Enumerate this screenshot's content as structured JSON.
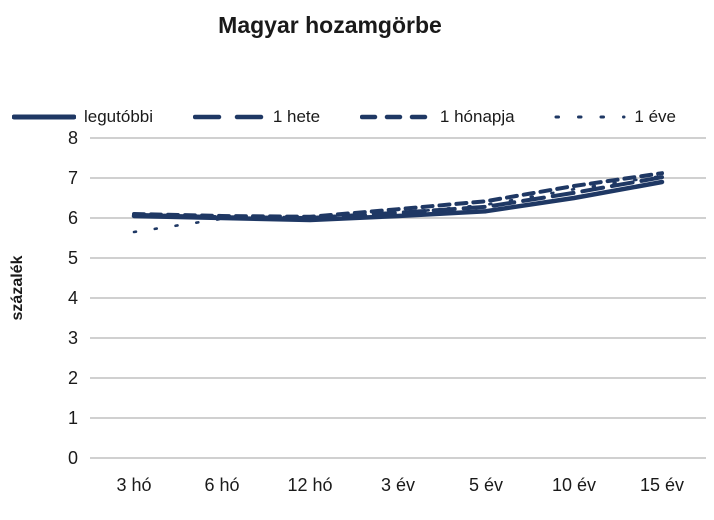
{
  "chart_data": {
    "type": "line",
    "title": "Magyar hozamgörbe",
    "ylabel": "százalék",
    "xlabel": "",
    "categories": [
      "3 hó",
      "6 hó",
      "12 hó",
      "3 év",
      "5 év",
      "10 év",
      "15 év"
    ],
    "series": [
      {
        "name": "legutóbbi",
        "style": "solid",
        "values": [
          6.05,
          6.0,
          5.95,
          6.05,
          6.17,
          6.5,
          6.9
        ]
      },
      {
        "name": "1 hete",
        "style": "dash-long",
        "values": [
          6.08,
          6.02,
          6.0,
          6.13,
          6.28,
          6.63,
          7.02
        ]
      },
      {
        "name": "1 hónapja",
        "style": "dash-medium",
        "values": [
          6.1,
          6.05,
          6.03,
          6.22,
          6.42,
          6.8,
          7.12
        ]
      },
      {
        "name": "1 éve",
        "style": "dot-sparse",
        "values": [
          5.65,
          5.98,
          5.97,
          6.12,
          6.33,
          6.72,
          7.05
        ]
      }
    ],
    "ylim": [
      0,
      8
    ],
    "ytick_step": 1,
    "grid": true,
    "legend_position": "top",
    "line_color": "#1f3864",
    "grid_color": "#c9c9c9",
    "text_color": "#1a1a1a"
  }
}
